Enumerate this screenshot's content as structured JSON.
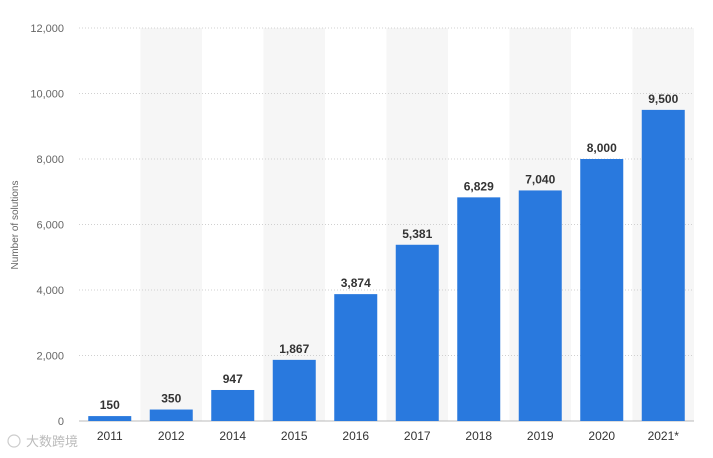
{
  "chart_data": {
    "type": "bar",
    "title": "",
    "xlabel": "",
    "ylabel": "Number of solutions",
    "categories": [
      "2011",
      "2012",
      "2014",
      "2015",
      "2016",
      "2017",
      "2018",
      "2019",
      "2020",
      "2021*"
    ],
    "values": [
      150,
      350,
      947,
      1867,
      3874,
      5381,
      6829,
      7040,
      8000,
      9500
    ],
    "data_labels": [
      "150",
      "350",
      "947",
      "1,867",
      "3,874",
      "5,381",
      "6,829",
      "7,040",
      "8,000",
      "9,500"
    ],
    "ylim": [
      0,
      12000
    ],
    "yticks": [
      0,
      2000,
      4000,
      6000,
      8000,
      10000,
      12000
    ],
    "ytick_labels": [
      "0",
      "2,000",
      "4,000",
      "6,000",
      "8,000",
      "10,000",
      "12,000"
    ],
    "grid": true,
    "bar_color": "#2979de",
    "band_color": "#f6f6f6",
    "gridline_color": "#d0d0d0"
  },
  "watermark": {
    "text": "大数跨境"
  }
}
